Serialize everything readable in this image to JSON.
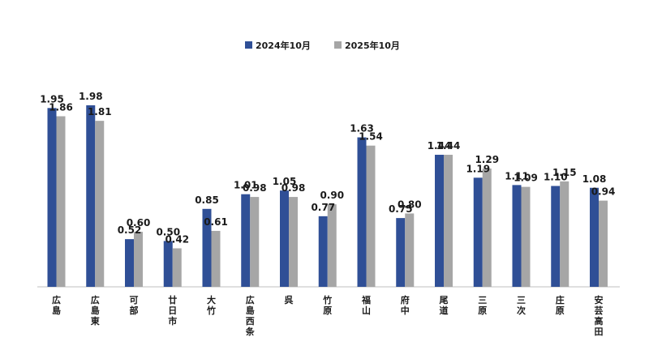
{
  "chart_data": {
    "type": "bar",
    "categories": [
      "広島",
      "広島東",
      "可部",
      "廿日市",
      "大竹",
      "広島西条",
      "呉",
      "竹原",
      "福山",
      "府中",
      "尾道",
      "三原",
      "三次",
      "庄原",
      "安芸高田"
    ],
    "series": [
      {
        "name": "2024年10月",
        "color": "#2f4f96",
        "values": [
          1.95,
          1.98,
          0.52,
          0.5,
          0.85,
          1.01,
          1.05,
          0.77,
          1.63,
          0.75,
          1.44,
          1.19,
          1.11,
          1.1,
          1.08
        ],
        "labels": [
          "1.95",
          "1.98",
          "0.52",
          "0.50",
          "0.85",
          "1.01",
          "1.05",
          "0.77",
          "1.63",
          "0.75",
          "1.44",
          "1.19",
          "1.11",
          "1.10",
          "1.08"
        ]
      },
      {
        "name": "2025年10月",
        "color": "#a6a6a6",
        "values": [
          1.86,
          1.81,
          0.6,
          0.42,
          0.61,
          0.98,
          0.98,
          0.9,
          1.54,
          0.8,
          1.44,
          1.29,
          1.09,
          1.15,
          0.94
        ],
        "labels": [
          "1.86",
          "1.81",
          "0.60",
          "0.42",
          "0.61",
          "0.98",
          "0.98",
          "0.90",
          "1.54",
          "0.80",
          "1.44",
          "1.29",
          "1.09",
          "1.15",
          "0.94"
        ]
      }
    ],
    "ylim": [
      0,
      2.2
    ],
    "grid": false,
    "legend_position": "top-center",
    "title": "",
    "xlabel": "",
    "ylabel": ""
  }
}
